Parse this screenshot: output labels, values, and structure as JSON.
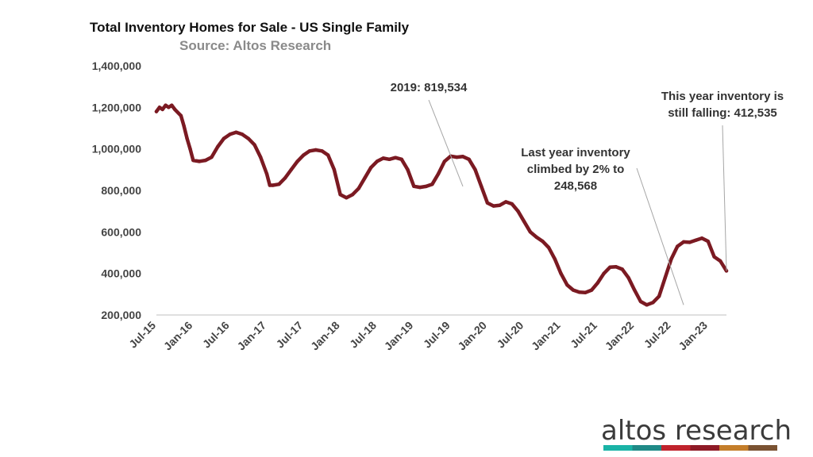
{
  "chart_data": {
    "type": "line",
    "title": "Total Inventory Homes for Sale - US Single Family",
    "subtitle": "Source: Altos Research",
    "xlabel": "",
    "ylabel": "",
    "ylim": [
      200000,
      1400000
    ],
    "yticks": [
      "1,400,000",
      "1,200,000",
      "1,000,000",
      "800,000",
      "600,000",
      "400,000",
      "200,000"
    ],
    "ytick_values": [
      1400000,
      1200000,
      1000000,
      800000,
      600000,
      400000,
      200000
    ],
    "xticks": [
      "Jul-15",
      "Jan-16",
      "Jul-16",
      "Jan-17",
      "Jul-17",
      "Jan-18",
      "Jul-18",
      "Jan-19",
      "Jul-19",
      "Jan-20",
      "Jul-20",
      "Jan-21",
      "Jul-21",
      "Jan-22",
      "Jul-22",
      "Jan-23"
    ],
    "x_range_months": [
      0,
      93
    ],
    "series": [
      {
        "name": "Total Inventory",
        "color": "#7b1a22",
        "x_months": [
          0,
          0.5,
          1,
          1.5,
          2,
          2.5,
          3,
          4,
          4.5,
          5,
          5.5,
          6,
          7,
          8,
          9,
          10,
          11,
          12,
          13,
          14,
          15,
          16,
          17,
          18,
          18.5,
          19,
          20,
          21,
          22,
          23,
          24,
          25,
          26,
          27,
          28,
          29,
          30,
          31,
          32,
          33,
          34,
          35,
          36,
          37,
          38,
          39,
          40,
          41,
          42,
          43,
          44,
          45,
          46,
          47,
          48,
          49,
          50,
          51,
          52,
          53,
          54,
          55,
          56,
          57,
          58,
          59,
          60,
          61,
          62,
          63,
          64,
          65,
          66,
          67,
          68,
          69,
          70,
          71,
          72,
          73,
          74,
          75,
          76,
          77,
          78,
          79,
          80,
          81,
          82,
          83,
          84,
          85,
          86,
          87,
          88,
          89,
          90,
          91,
          92,
          93
        ],
        "values": [
          1180000,
          1200000,
          1190000,
          1210000,
          1200000,
          1210000,
          1190000,
          1160000,
          1110000,
          1050000,
          1000000,
          945000,
          940000,
          945000,
          960000,
          1010000,
          1050000,
          1070000,
          1080000,
          1070000,
          1050000,
          1020000,
          960000,
          880000,
          825000,
          825000,
          830000,
          860000,
          900000,
          940000,
          970000,
          990000,
          995000,
          990000,
          970000,
          900000,
          780000,
          765000,
          780000,
          810000,
          860000,
          910000,
          940000,
          955000,
          950000,
          958000,
          950000,
          900000,
          820000,
          815000,
          819534,
          830000,
          880000,
          940000,
          965000,
          960000,
          963000,
          950000,
          900000,
          820000,
          740000,
          725000,
          728000,
          745000,
          735000,
          700000,
          650000,
          600000,
          575000,
          555000,
          525000,
          470000,
          400000,
          345000,
          320000,
          310000,
          308000,
          320000,
          355000,
          400000,
          430000,
          432000,
          420000,
          380000,
          320000,
          265000,
          248568,
          260000,
          290000,
          380000,
          470000,
          530000,
          552000,
          550000,
          560000,
          570000,
          555000,
          480000,
          460000,
          412535
        ]
      }
    ],
    "annotations": [
      {
        "lines": [
          "2019: 819,534"
        ],
        "x_month": 50,
        "value": 819534
      },
      {
        "lines": [
          "Last year inventory",
          "climbed by 2% to",
          "248,568"
        ],
        "x_month": 86,
        "value": 248568
      },
      {
        "lines": [
          "This year inventory is",
          "still falling: 412,535"
        ],
        "x_month": 93,
        "value": 412535
      }
    ]
  },
  "logo": {
    "text": "altos research",
    "stripe_colors": [
      "#1ab3a6",
      "#1f8a87",
      "#c0232c",
      "#8e1a26",
      "#c47e2a",
      "#7a5232"
    ]
  }
}
